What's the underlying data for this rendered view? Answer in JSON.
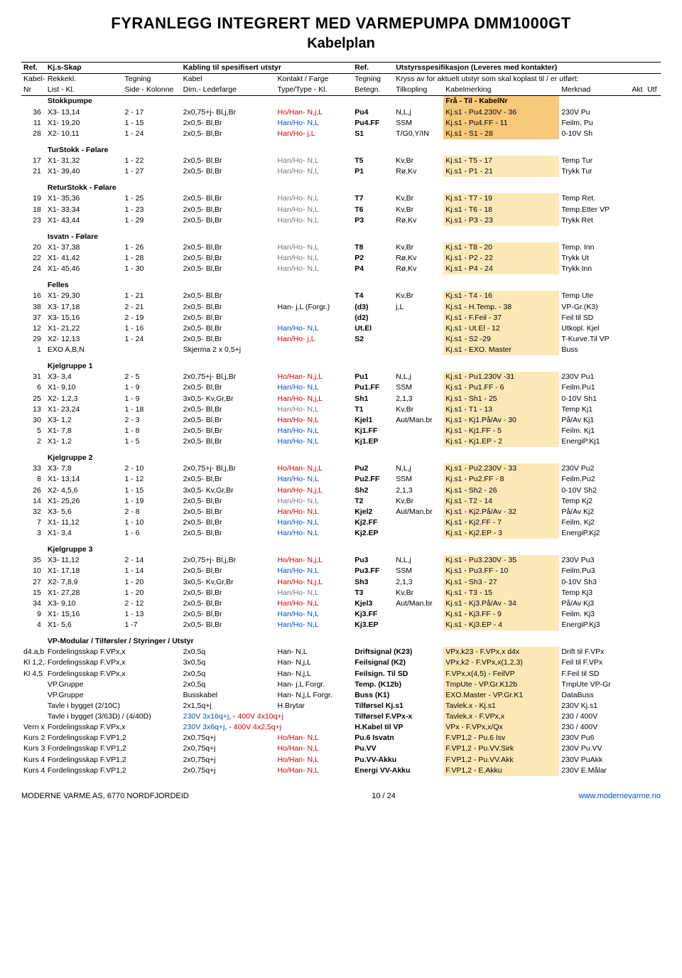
{
  "page": {
    "title": "FYRANLEGG INTEGRERT MED VARMEPUMPA DMM1000GT",
    "subtitle": "Kabelplan",
    "footer_left": "MODERNE VARME AS, 6770 NORDFJORDEID",
    "footer_center": "10 / 24",
    "footer_right": "www.modernevarme.no"
  },
  "headerTop": {
    "ref1": "Ref.",
    "skap": "Kj.s-Skap",
    "kabling": "Kabling til spesifisert utstyr",
    "ref2": "Ref.",
    "spes": "Utstyrsspesifikasjon (Leveres med kontakter)"
  },
  "headerMid": {
    "c0": "Kabel-",
    "c1": "Rekkekl.",
    "c2": "Tegning",
    "c3": "Kabel",
    "c4": "Kontakt / Farge",
    "c5": "Tegning",
    "c6": "Kryss av for aktuelt utstyr som skal koplast til / er utført:"
  },
  "headerLow": {
    "c0": "Nr",
    "c1": "List - Kl.",
    "c2": "Side - Kolonne",
    "c3": "Dim.- Ledefarge",
    "c4": "Type/Type - Kl.",
    "c5": "Betegn.",
    "c6": "Tilkopling",
    "c7": "Kabelmerking",
    "c8": "Merknad",
    "c9": "Akt",
    "c10": "Utf"
  },
  "sections": [
    {
      "label": "Stokkpumpe",
      "right": "Frå - Til - KabelNr",
      "rows": [
        {
          "nr": "36",
          "kl": "X3- 13,14",
          "teg": "2 - 17",
          "kab": "2x0,75+j- Bl,j,Br",
          "kon": "Ho/Han- N,j,L",
          "konCls": "red",
          "bet": "Pu4",
          "til": "N,L,j",
          "mk": "Kj.s1 - Pu4.230V - 36",
          "mkCls": "dtan",
          "mer": "230V Pu"
        },
        {
          "nr": "11",
          "kl": "X1- 19,20",
          "teg": "1 - 15",
          "kab": "2x0,5- Bl,Br",
          "kon": "Han/Ho- N,L",
          "konCls": "blue",
          "bet": "Pu4.FF",
          "til": "SSM",
          "mk": "Kj.s1 - Pu4.FF - 11",
          "mkCls": "dtan",
          "mer": "Feilm. Pu"
        },
        {
          "nr": "28",
          "kl": "X2- 10,11",
          "teg": "1 - 24",
          "kab": "2x0,5- Bl,Br",
          "kon": "Han/Ho- j,L",
          "konCls": "red",
          "bet": "S1",
          "til": "T/G0,Y/IN",
          "mk": "Kj.s1 - S1 - 28",
          "mkCls": "dtan",
          "mer": "0-10V Sh"
        }
      ]
    },
    {
      "label": "TurStokk - Følare",
      "rows": [
        {
          "nr": "17",
          "kl": "X1- 31,32",
          "teg": "1 - 22",
          "kab": "2x0,5- Bl,Br",
          "kon": "Han/Ho- N,L",
          "konCls": "gray",
          "bet": "T5",
          "til": "Kv,Br",
          "mk": "Kj.s1 - T5 - 17",
          "mkCls": "tan",
          "mer": "Temp Tur"
        },
        {
          "nr": "21",
          "kl": "X1- 39,40",
          "teg": "1 - 27",
          "kab": "2x0,5- Bl,Br",
          "kon": "Han/Ho- N,L",
          "konCls": "gray",
          "bet": "P1",
          "til": "Rø,Kv",
          "mk": "Kj.s1 - P1 - 21",
          "mkCls": "tan",
          "mer": "Trykk Tur"
        }
      ]
    },
    {
      "label": "ReturStokk - Følare",
      "rows": [
        {
          "nr": "19",
          "kl": "X1- 35,36",
          "teg": "1 - 25",
          "kab": "2x0,5- Bl,Br",
          "kon": "Han/Ho- N,L",
          "konCls": "gray",
          "bet": "T7",
          "til": "Kv,Br",
          "mk": "Kj.s1 - T7  - 19",
          "mkCls": "tan",
          "mer": "Temp Ret."
        },
        {
          "nr": "18",
          "kl": "X1- 33,34",
          "teg": "1 - 23",
          "kab": "2x0,5- Bl,Br",
          "kon": "Han/Ho- N,L",
          "konCls": "gray",
          "bet": "T6",
          "til": "Kv,Br",
          "mk": "Kj.s1 - T6 - 18",
          "mkCls": "tan",
          "mer": "Temp.Etter VP"
        },
        {
          "nr": "23",
          "kl": "X1- 43,44",
          "teg": "1 - 29",
          "kab": "2x0,5- Bl,Br",
          "kon": "Han/Ho- N,L",
          "konCls": "gray",
          "bet": "P3",
          "til": "Rø,Kv",
          "mk": "Kj.s1 - P3 - 23",
          "mkCls": "tan",
          "mer": "Trykk Ret"
        }
      ]
    },
    {
      "label": "Isvatn - Følare",
      "rows": [
        {
          "nr": "20",
          "kl": "X1- 37,38",
          "teg": "1 - 26",
          "kab": "2x0,5- Bl,Br",
          "kon": "Han/Ho- N,L",
          "konCls": "gray",
          "bet": "T8",
          "til": "Kv,Br",
          "mk": "Kj.s1 - T8 - 20",
          "mkCls": "tan",
          "mer": "Temp. Inn"
        },
        {
          "nr": "22",
          "kl": "X1- 41,42",
          "teg": "1 - 28",
          "kab": "2x0,5- Bl,Br",
          "kon": "Han/Ho- N,L",
          "konCls": "gray",
          "bet": "P2",
          "til": "Rø,Kv",
          "mk": "Kj.s1 - P2 - 22",
          "mkCls": "tan",
          "mer": "Trykk  Ut"
        },
        {
          "nr": "24",
          "kl": "X1- 45,46",
          "teg": "1 - 30",
          "kab": "2x0,5- Bl,Br",
          "kon": "Han/Ho- N,L",
          "konCls": "gray",
          "bet": "P4",
          "til": "Rø,Kv",
          "mk": "Kj.s1 - P4 - 24",
          "mkCls": "tan",
          "mer": "Trykk  Inn"
        }
      ]
    },
    {
      "label": "Felles",
      "rows": [
        {
          "nr": "16",
          "kl": "X1- 29,30",
          "teg": "1 - 21",
          "kab": "2x0,5- Bl,Br",
          "kon": "",
          "bet": "T4",
          "til": "Kv,Br",
          "mk": "Kj.s1 - T4 - 16",
          "mkCls": "tan",
          "mer": "Temp Ute"
        },
        {
          "nr": "38",
          "kl": "X3- 17,18",
          "teg": "2 - 21",
          "kab": "2x0,5- Bl,Br",
          "kon": "Han- j,L (Forgr.)",
          "bet": "(d3)",
          "til": "j,L",
          "mk": "Kj.s1 - H.Temp. - 38",
          "mkCls": "tan",
          "mer": "VP-Gr.(K3)"
        },
        {
          "nr": "37",
          "kl": "X3- 15,16",
          "teg": "2 - 19",
          "kab": "2x0,5- Bl,Br",
          "kon": "",
          "bet": "(d2)",
          "til": "",
          "mk": "Kj.s1 - F.Feil - 37",
          "mkCls": "tan",
          "mer": "Feil til SD"
        },
        {
          "nr": "12",
          "kl": "X1- 21,22",
          "teg": "1 - 16",
          "kab": "2x0,5- Bl,Br",
          "kon": "Han/Ho- N,L",
          "konCls": "blue",
          "bet": "Ut.El",
          "til": "",
          "mk": "Kj.s1 - Ut.El - 12",
          "mkCls": "tan",
          "mer": "Utkopl. Kjel"
        },
        {
          "nr": "29",
          "kl": "X2- 12,13",
          "teg": "1 - 24",
          "kab": "2x0,5- Bl,Br",
          "kon": "Han/Ho- j,L",
          "konCls": "red",
          "bet": "S2",
          "til": "",
          "mk": "Kj.s1 - S2 -29",
          "mkCls": "tan",
          "mer": "T-Kurve.Til VP"
        },
        {
          "nr": "1",
          "kl": "EXO A,B,N",
          "teg": "",
          "kab": "Skjerma 2 x 0,5+j",
          "kon": "",
          "bet": "",
          "til": "",
          "mk": "Kj.s1 - EXO. Master",
          "mkCls": "tan",
          "mer": "Buss"
        }
      ]
    },
    {
      "label": "Kjelgruppe 1",
      "rows": [
        {
          "nr": "31",
          "kl": "X3- 3,4",
          "teg": "2 - 5",
          "kab": "2x0,75+j- Bl,j,Br",
          "kon": "Ho/Han- N,j,L",
          "konCls": "red",
          "bet": "Pu1",
          "til": "N,L,j",
          "mk": "Kj.s1 - Pu1.230V -31",
          "mkCls": "tan",
          "mer": "230V Pu1"
        },
        {
          "nr": "6",
          "kl": "X1- 9,10",
          "teg": "1 - 9",
          "kab": "2x0,5- Bl,Br",
          "kon": "Han/Ho- N,L",
          "konCls": "blue",
          "bet": "Pu1.FF",
          "til": "SSM",
          "mk": "Kj.s1 - Pu1.FF - 6",
          "mkCls": "tan",
          "mer": "Feilm.Pu1"
        },
        {
          "nr": "25",
          "kl": "X2- 1,2,3",
          "teg": "1 - 9",
          "kab": "3x0,5- Kv,Gr,Br",
          "kon": "Han/Ho- N,j,L",
          "konCls": "red",
          "bet": "Sh1",
          "til": "2,1,3",
          "mk": "Kj.s1 - Sh1 - 25",
          "mkCls": "tan",
          "mer": "0-10V Sh1"
        },
        {
          "nr": "13",
          "kl": "X1- 23,24",
          "teg": "1 - 18",
          "kab": "2x0,5- Bl,Br",
          "kon": "Han/Ho- N,L",
          "konCls": "gray",
          "bet": "T1",
          "til": "Kv,Br",
          "mk": "Kj.s1 - T1 - 13",
          "mkCls": "tan",
          "mer": "Temp Kj1"
        },
        {
          "nr": "30",
          "kl": "X3- 1,2",
          "teg": "2 - 3",
          "kab": "2x0,5- Bl,Br",
          "kon": "Han/Ho- N,L",
          "konCls": "red",
          "bet": "Kjel1",
          "til": "Aut/Man.br",
          "mk": "Kj.s1 - Kj1.På/Av - 30",
          "mkCls": "tan",
          "mer": "På/Av Kj1"
        },
        {
          "nr": "5",
          "kl": "X1- 7,8",
          "teg": "1 - 8",
          "kab": "2x0,5- Bl,Br",
          "kon": "Han/Ho- N,L",
          "konCls": "blue",
          "bet": "Kj1.FF",
          "til": "",
          "mk": "Kj.s1 - Kj1.FF - 5",
          "mkCls": "tan",
          "mer": "Feilm. Kj1"
        },
        {
          "nr": "2",
          "kl": "X1- 1,2",
          "teg": "1 - 5",
          "kab": "2x0,5- Bl,Br",
          "kon": "Han/Ho- N,L",
          "konCls": "blue",
          "bet": "Kj1.EP",
          "til": "",
          "mk": "Kj.s1 - Kj1.EP - 2",
          "mkCls": "tan",
          "mer": "EnergiP.Kj1"
        }
      ]
    },
    {
      "label": "Kjelgruppe 2",
      "rows": [
        {
          "nr": "33",
          "kl": "X3- 7,8",
          "teg": "2 - 10",
          "kab": "2x0,75+j- Bl,j,Br",
          "kon": "Ho/Han- N,j,L",
          "konCls": "red",
          "bet": "Pu2",
          "til": "N,L,j",
          "mk": "Kj.s1 - Pu2.230V - 33",
          "mkCls": "tan",
          "mer": "230V Pu2"
        },
        {
          "nr": "8",
          "kl": "X1- 13,14",
          "teg": "1 - 12",
          "kab": "2x0,5- Bl,Br",
          "kon": "Han/Ho- N,L",
          "konCls": "blue",
          "bet": "Pu2.FF",
          "til": "SSM",
          "mk": "Kj.s1 - Pu2.FF - 8",
          "mkCls": "tan",
          "mer": "Feilm.Pu2"
        },
        {
          "nr": "26",
          "kl": "X2- 4,5,6",
          "teg": "1 - 15",
          "kab": "3x0,5- Kv,Gr,Br",
          "kon": "Han/Ho- N,j,L",
          "konCls": "red",
          "bet": "Sh2",
          "til": "2,1,3",
          "mk": "Kj.s1 - Sh2 - 26",
          "mkCls": "tan",
          "mer": "0-10V Sh2"
        },
        {
          "nr": "14",
          "kl": "X1- 25,26",
          "teg": "1 - 19",
          "kab": "2x0,5- Bl,Br",
          "kon": "Han/Ho- N,L",
          "konCls": "gray",
          "bet": "T2",
          "til": "Kv,Br",
          "mk": "Kj.s1 - T2 - 14",
          "mkCls": "tan",
          "mer": "Temp Kj2"
        },
        {
          "nr": "32",
          "kl": "X3- 5,6",
          "teg": "2 - 8",
          "kab": "2x0,5- Bl,Br",
          "kon": "Han/Ho- N,L",
          "konCls": "red",
          "bet": "Kjel2",
          "til": "Aut/Man.br",
          "mk": "Kj.s1 - Kj2.På/Av - 32",
          "mkCls": "tan",
          "mer": "På/Av Kj2"
        },
        {
          "nr": "7",
          "kl": "X1- 11,12",
          "teg": "1 - 10",
          "kab": "2x0,5- Bl,Br",
          "kon": "Han/Ho- N,L",
          "konCls": "blue",
          "bet": "Kj2.FF",
          "til": "",
          "mk": "Kj.s1 - Kj2.FF - 7",
          "mkCls": "tan",
          "mer": "Feilm. Kj2"
        },
        {
          "nr": "3",
          "kl": "X1- 3,4",
          "teg": "1 - 6",
          "kab": "2x0,5- Bl,Br",
          "kon": "Han/Ho- N,L",
          "konCls": "blue",
          "bet": "Kj2.EP",
          "til": "",
          "mk": "Kj.s1 - Kj2.EP - 3",
          "mkCls": "tan",
          "mer": "EnergiP.Kj2"
        }
      ]
    },
    {
      "label": "Kjelgruppe 3",
      "rows": [
        {
          "nr": "35",
          "kl": "X3- 11,12",
          "teg": "2 - 14",
          "kab": "2x0,75+j- Bl,j,Br",
          "kon": "Ho/Han- N,j,L",
          "konCls": "red",
          "bet": "Pu3",
          "til": "N,L,j",
          "mk": "Kj.s1 - Pu3.230V - 35",
          "mkCls": "tan",
          "mer": "230V Pu3"
        },
        {
          "nr": "10",
          "kl": "X1- 17,18",
          "teg": "1 - 14",
          "kab": "2x0,5- Bl,Br",
          "kon": "Han/Ho- N,L",
          "konCls": "blue",
          "bet": "Pu3.FF",
          "til": "SSM",
          "mk": "Kj.s1 - Pu3.FF - 10",
          "mkCls": "tan",
          "mer": "Feilm.Pu3"
        },
        {
          "nr": "27",
          "kl": "X2- 7,8,9",
          "teg": "1 - 20",
          "kab": "3x0,5- Kv,Gr,Br",
          "kon": "Han/Ho- N,j,L",
          "konCls": "red",
          "bet": "Sh3",
          "til": "2,1,3",
          "mk": "Kj.s1 - Sh3 - 27",
          "mkCls": "tan",
          "mer": "0-10V Sh3"
        },
        {
          "nr": "15",
          "kl": "X1- 27,28",
          "teg": "1 - 20",
          "kab": "2x0,5- Bl,Br",
          "kon": "Han/Ho- N,L",
          "konCls": "gray",
          "bet": "T3",
          "til": "Kv,Br",
          "mk": "Kj.s1 - T3 - 15",
          "mkCls": "tan",
          "mer": "Temp Kj3"
        },
        {
          "nr": "34",
          "kl": "X3- 9,10",
          "teg": "2 - 12",
          "kab": "2x0,5- Bl,Br",
          "kon": "Han/Ho- N,L",
          "konCls": "red",
          "bet": "Kjel3",
          "til": "Aut/Man.br",
          "mk": "Kj.s1 - Kj3.På/Av - 34",
          "mkCls": "tan",
          "mer": "På/Av Kj3"
        },
        {
          "nr": "9",
          "kl": "X1- 15,16",
          "teg": "1 - 13",
          "kab": "2x0,5- Bl,Br",
          "kon": "Han/Ho- N,L",
          "konCls": "blue",
          "bet": "Kj3.FF",
          "til": "",
          "mk": "Kj.s1 - Kj3.FF - 9",
          "mkCls": "tan",
          "mer": "Feilm. Kj3"
        },
        {
          "nr": "4",
          "kl": "X1- 5,6",
          "teg": "1 -7",
          "kab": "2x0,5- Bl,Br",
          "kon": "Han/Ho- N,L",
          "konCls": "blue",
          "bet": "Kj3.EP",
          "til": "",
          "mk": "Kj.s1 - Kj3.EP - 4",
          "mkCls": "tan",
          "mer": "EnergiP.Kj3"
        }
      ]
    },
    {
      "label": "VP-Modular / Tilførsler / Styringer / Utstyr",
      "rows": [
        {
          "nr": "d4.a,b",
          "kl": "Fordelingsskap F.VPx,x",
          "teg": "",
          "kab": "2x0,5q",
          "kon": "Han- N,L",
          "bet": "",
          "betLong": "Driftsignal (K23)",
          "mk": "VPx,k23 - F.VPx,x d4x",
          "mkCls": "tan",
          "mer": "Drift til F.VPx"
        },
        {
          "nr": "Kl 1,2,3",
          "kl": "Fordelingsskap F.VPx,x",
          "kab": "3x0,5q",
          "kon": "Han- N,j,L",
          "betLong": "Feilsignal (K2)",
          "mk": "VPx,k2 - F.VPx,x(1,2,3)",
          "mkCls": "tan",
          "mer": "Feil til F.VPx"
        },
        {
          "nr": "Kl 4,5",
          "kl": "Fordelingsskap F.VPx,x",
          "kab": "2x0,5q",
          "kon": "Han- N,j,L",
          "betLong": "Feilsign. Til SD",
          "mk": "F.VPx,x(4,5) - FeilVP",
          "mkCls": "tan",
          "mer": "F.Feil til SD"
        },
        {
          "nr": "",
          "kl": "VP.Gruppe",
          "kab": "2x0,5q",
          "kon": "Han- j,L Forgr.",
          "betLong": "Temp. (K12b)",
          "mk": "TmpUte - VP.Gr.K12b",
          "mkCls": "tan",
          "mer": "TmpUte VP-Gr"
        },
        {
          "nr": "",
          "kl": "VP.Gruppe",
          "kab": "Busskabel",
          "kon": "Han- N,j,L Forgr.",
          "betLong": "Buss (K1)",
          "mk": "EXO.Master - VP.Gr.K1",
          "mkCls": "tan",
          "mer": "DataBuss"
        },
        {
          "nr": "",
          "kl": "Tavle i bygget (2/10C)",
          "kab": "2x1,5q+j",
          "kon": "H.Brytar",
          "betLong": "Tilførsel  Kj.s1",
          "mk": "Tavlek.x - Kj.s1",
          "mkCls": "tan",
          "mer": "230V Kj.s1"
        },
        {
          "nr": "",
          "kl": "Tavle i bygget (3/63D) / (4/40D)",
          "kab": "",
          "kabHtml": "<span class='blue'>230V 3x16q+j</span>, - <span class='red'>400V 4x10q+j</span>",
          "kon": "",
          "betLong": "Tilførsel F.VPx-x",
          "mk": "Tavlek.x - F.VPx,x",
          "mkCls": "tan",
          "mer": "230 / 400V"
        },
        {
          "nr": "Vern x",
          "kl": "Fordelingsskap F.VPx,x",
          "kabHtml": "<span class='blue'>230V 3x6q+j</span>,  - <span class='red'>400V 4x2,5q+j</span>",
          "kon": "",
          "betLong": "H.Kabel til VP",
          "mk": "VPx - F.VPx,x/Qx",
          "mkCls": "tan",
          "mer": "230 / 400V"
        },
        {
          "nr": "Kurs 2",
          "kl": "Fordelingsskap F.VP1,2",
          "kab": "2x0,75q+j",
          "kon": "Ho/Han- N,L",
          "konCls": "red",
          "betLong": "Pu.6 Isvatn",
          "mk": "F.VP1,2 - Pu.6 Isv",
          "mkCls": "tan",
          "mer": "230V Pu6"
        },
        {
          "nr": "Kurs 3",
          "kl": "Fordelingsskap F.VP1,2",
          "kab": "2x0,75q+j",
          "kon": "Ho/Han- N,L",
          "konCls": "red",
          "betLong": "Pu.VV",
          "mk": "F.VP1,2 - Pu.VV.Sirk",
          "mkCls": "tan",
          "mer": "230V Pu.VV"
        },
        {
          "nr": "Kurs 4",
          "kl": "Fordelingsskap F.VP1,2",
          "kab": "2x0,75q+j",
          "kon": "Ho/Han- N,L",
          "konCls": "red",
          "betLong": "Pu.VV-Akku",
          "mk": "F.VP1,2 - Pu.VV.Akk",
          "mkCls": "tan",
          "mer": "230V PuAkk"
        },
        {
          "nr": "Kurs 4",
          "kl": "Fordelingsskap F.VP1,2",
          "kab": "2x0,75q+j",
          "kon": "Ho/Han- N,L",
          "konCls": "red",
          "betLong": "Energi VV-Akku",
          "mk": "F.VP1,2 - E.Akku",
          "mkCls": "tan",
          "mer": "230V E.Målar"
        }
      ]
    }
  ]
}
